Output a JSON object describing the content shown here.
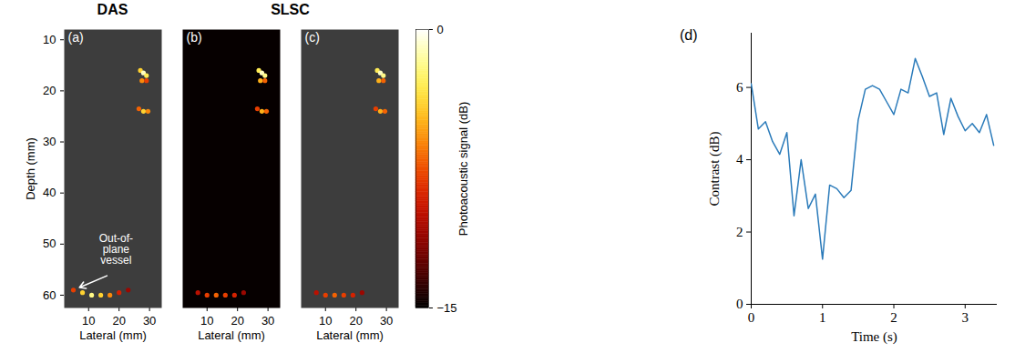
{
  "chart_data": [
    {
      "type": "image",
      "group": "DAS",
      "title": "(a)",
      "xlabel": "Lateral (mm)",
      "ylabel": "Depth (mm)",
      "xlim": [
        2,
        34
      ],
      "ylim": [
        8,
        62.5
      ],
      "xticks": [
        10,
        20,
        30
      ],
      "yticks": [
        10,
        20,
        30,
        40,
        50,
        60
      ],
      "color": "#3d3d3d",
      "signals": [
        {
          "x": 27,
          "y": 16,
          "level": -4
        },
        {
          "x": 28,
          "y": 16.5,
          "level": -1
        },
        {
          "x": 29,
          "y": 17,
          "level": -3
        },
        {
          "x": 27.5,
          "y": 18,
          "level": -6
        },
        {
          "x": 29,
          "y": 18,
          "level": -8
        },
        {
          "x": 26.5,
          "y": 23.5,
          "level": -7
        },
        {
          "x": 28,
          "y": 24,
          "level": -4
        },
        {
          "x": 29.5,
          "y": 24,
          "level": -6
        },
        {
          "x": 5,
          "y": 59,
          "level": -8
        },
        {
          "x": 8,
          "y": 59.5,
          "level": -4
        },
        {
          "x": 11,
          "y": 60,
          "level": -2
        },
        {
          "x": 14,
          "y": 60,
          "level": -4
        },
        {
          "x": 17,
          "y": 60,
          "level": -6
        },
        {
          "x": 20,
          "y": 59.5,
          "level": -9
        },
        {
          "x": 23,
          "y": 59,
          "level": -11
        }
      ],
      "annotations": [
        {
          "text": "Out-of-\nplane\nvessel",
          "x": 19,
          "y": 51,
          "arrow_from": [
            16,
            56.2
          ],
          "arrow_to": [
            7,
            58.5
          ]
        }
      ]
    },
    {
      "type": "image",
      "group": "SLSC",
      "title": "(b)",
      "xlabel": "Lateral (mm)",
      "xlim": [
        2,
        34
      ],
      "ylim": [
        8,
        62.5
      ],
      "xticks": [
        10,
        20,
        30
      ],
      "tick_labels": "x",
      "color": "#060000",
      "signals": [
        {
          "x": 27,
          "y": 16,
          "level": -3
        },
        {
          "x": 28,
          "y": 16.5,
          "level": -1
        },
        {
          "x": 29,
          "y": 17,
          "level": -2
        },
        {
          "x": 27.5,
          "y": 18,
          "level": -5
        },
        {
          "x": 29,
          "y": 18,
          "level": -7
        },
        {
          "x": 26.5,
          "y": 23.5,
          "level": -8
        },
        {
          "x": 28,
          "y": 24,
          "level": -5
        },
        {
          "x": 29.5,
          "y": 24,
          "level": -7
        },
        {
          "x": 7,
          "y": 59.5,
          "level": -10
        },
        {
          "x": 10,
          "y": 60,
          "level": -8
        },
        {
          "x": 13,
          "y": 60,
          "level": -7
        },
        {
          "x": 16,
          "y": 60,
          "level": -8
        },
        {
          "x": 19,
          "y": 60,
          "level": -9
        },
        {
          "x": 22,
          "y": 59.5,
          "level": -11
        }
      ]
    },
    {
      "type": "image",
      "group": "SLSC",
      "title": "(c)",
      "xlabel": "Lateral (mm)",
      "xlim": [
        2,
        34
      ],
      "ylim": [
        8,
        62.5
      ],
      "xticks": [
        10,
        20,
        30
      ],
      "tick_labels": "x",
      "color": "#3d3d3d",
      "signals": [
        {
          "x": 27,
          "y": 16,
          "level": -3
        },
        {
          "x": 28,
          "y": 16.5,
          "level": -1
        },
        {
          "x": 29,
          "y": 17,
          "level": -2
        },
        {
          "x": 27.5,
          "y": 18,
          "level": -5
        },
        {
          "x": 29,
          "y": 18,
          "level": -7
        },
        {
          "x": 26.5,
          "y": 23.5,
          "level": -8
        },
        {
          "x": 28,
          "y": 24,
          "level": -5
        },
        {
          "x": 29.5,
          "y": 24,
          "level": -7
        },
        {
          "x": 7,
          "y": 59.5,
          "level": -10
        },
        {
          "x": 10,
          "y": 60,
          "level": -8
        },
        {
          "x": 13,
          "y": 60,
          "level": -7
        },
        {
          "x": 16,
          "y": 60,
          "level": -8
        },
        {
          "x": 19,
          "y": 60,
          "level": -9
        },
        {
          "x": 22,
          "y": 59.5,
          "level": -11
        }
      ],
      "colorbar": {
        "label": "Photoacoustic signal (dB)",
        "range": [
          -15,
          0
        ],
        "ticks": [
          0,
          -15
        ]
      }
    },
    {
      "type": "line",
      "title": "(d)",
      "xlabel": "Time (s)",
      "ylabel": "Contrast (dB)",
      "x": [
        0,
        0.1,
        0.2,
        0.3,
        0.4,
        0.5,
        0.6,
        0.7,
        0.8,
        0.9,
        1.0,
        1.1,
        1.2,
        1.3,
        1.4,
        1.5,
        1.6,
        1.7,
        1.8,
        1.9,
        2.0,
        2.1,
        2.2,
        2.3,
        2.4,
        2.5,
        2.6,
        2.7,
        2.8,
        2.9,
        3.0,
        3.1,
        3.2,
        3.3,
        3.4
      ],
      "values": [
        6.1,
        4.85,
        5.05,
        4.5,
        4.15,
        4.75,
        2.45,
        4.0,
        2.65,
        3.05,
        1.25,
        3.3,
        3.2,
        2.95,
        3.15,
        5.1,
        5.95,
        6.05,
        5.95,
        5.6,
        5.25,
        5.95,
        5.85,
        6.8,
        6.3,
        5.75,
        5.85,
        4.7,
        5.7,
        5.2,
        4.8,
        5.0,
        4.75,
        5.25,
        4.4
      ],
      "color": "#2b7bba",
      "xlim": [
        0,
        3.45
      ],
      "ylim": [
        0,
        7.5
      ],
      "xticks": [
        0,
        1,
        2,
        3
      ],
      "yticks": [
        0,
        2,
        4,
        6
      ]
    }
  ]
}
